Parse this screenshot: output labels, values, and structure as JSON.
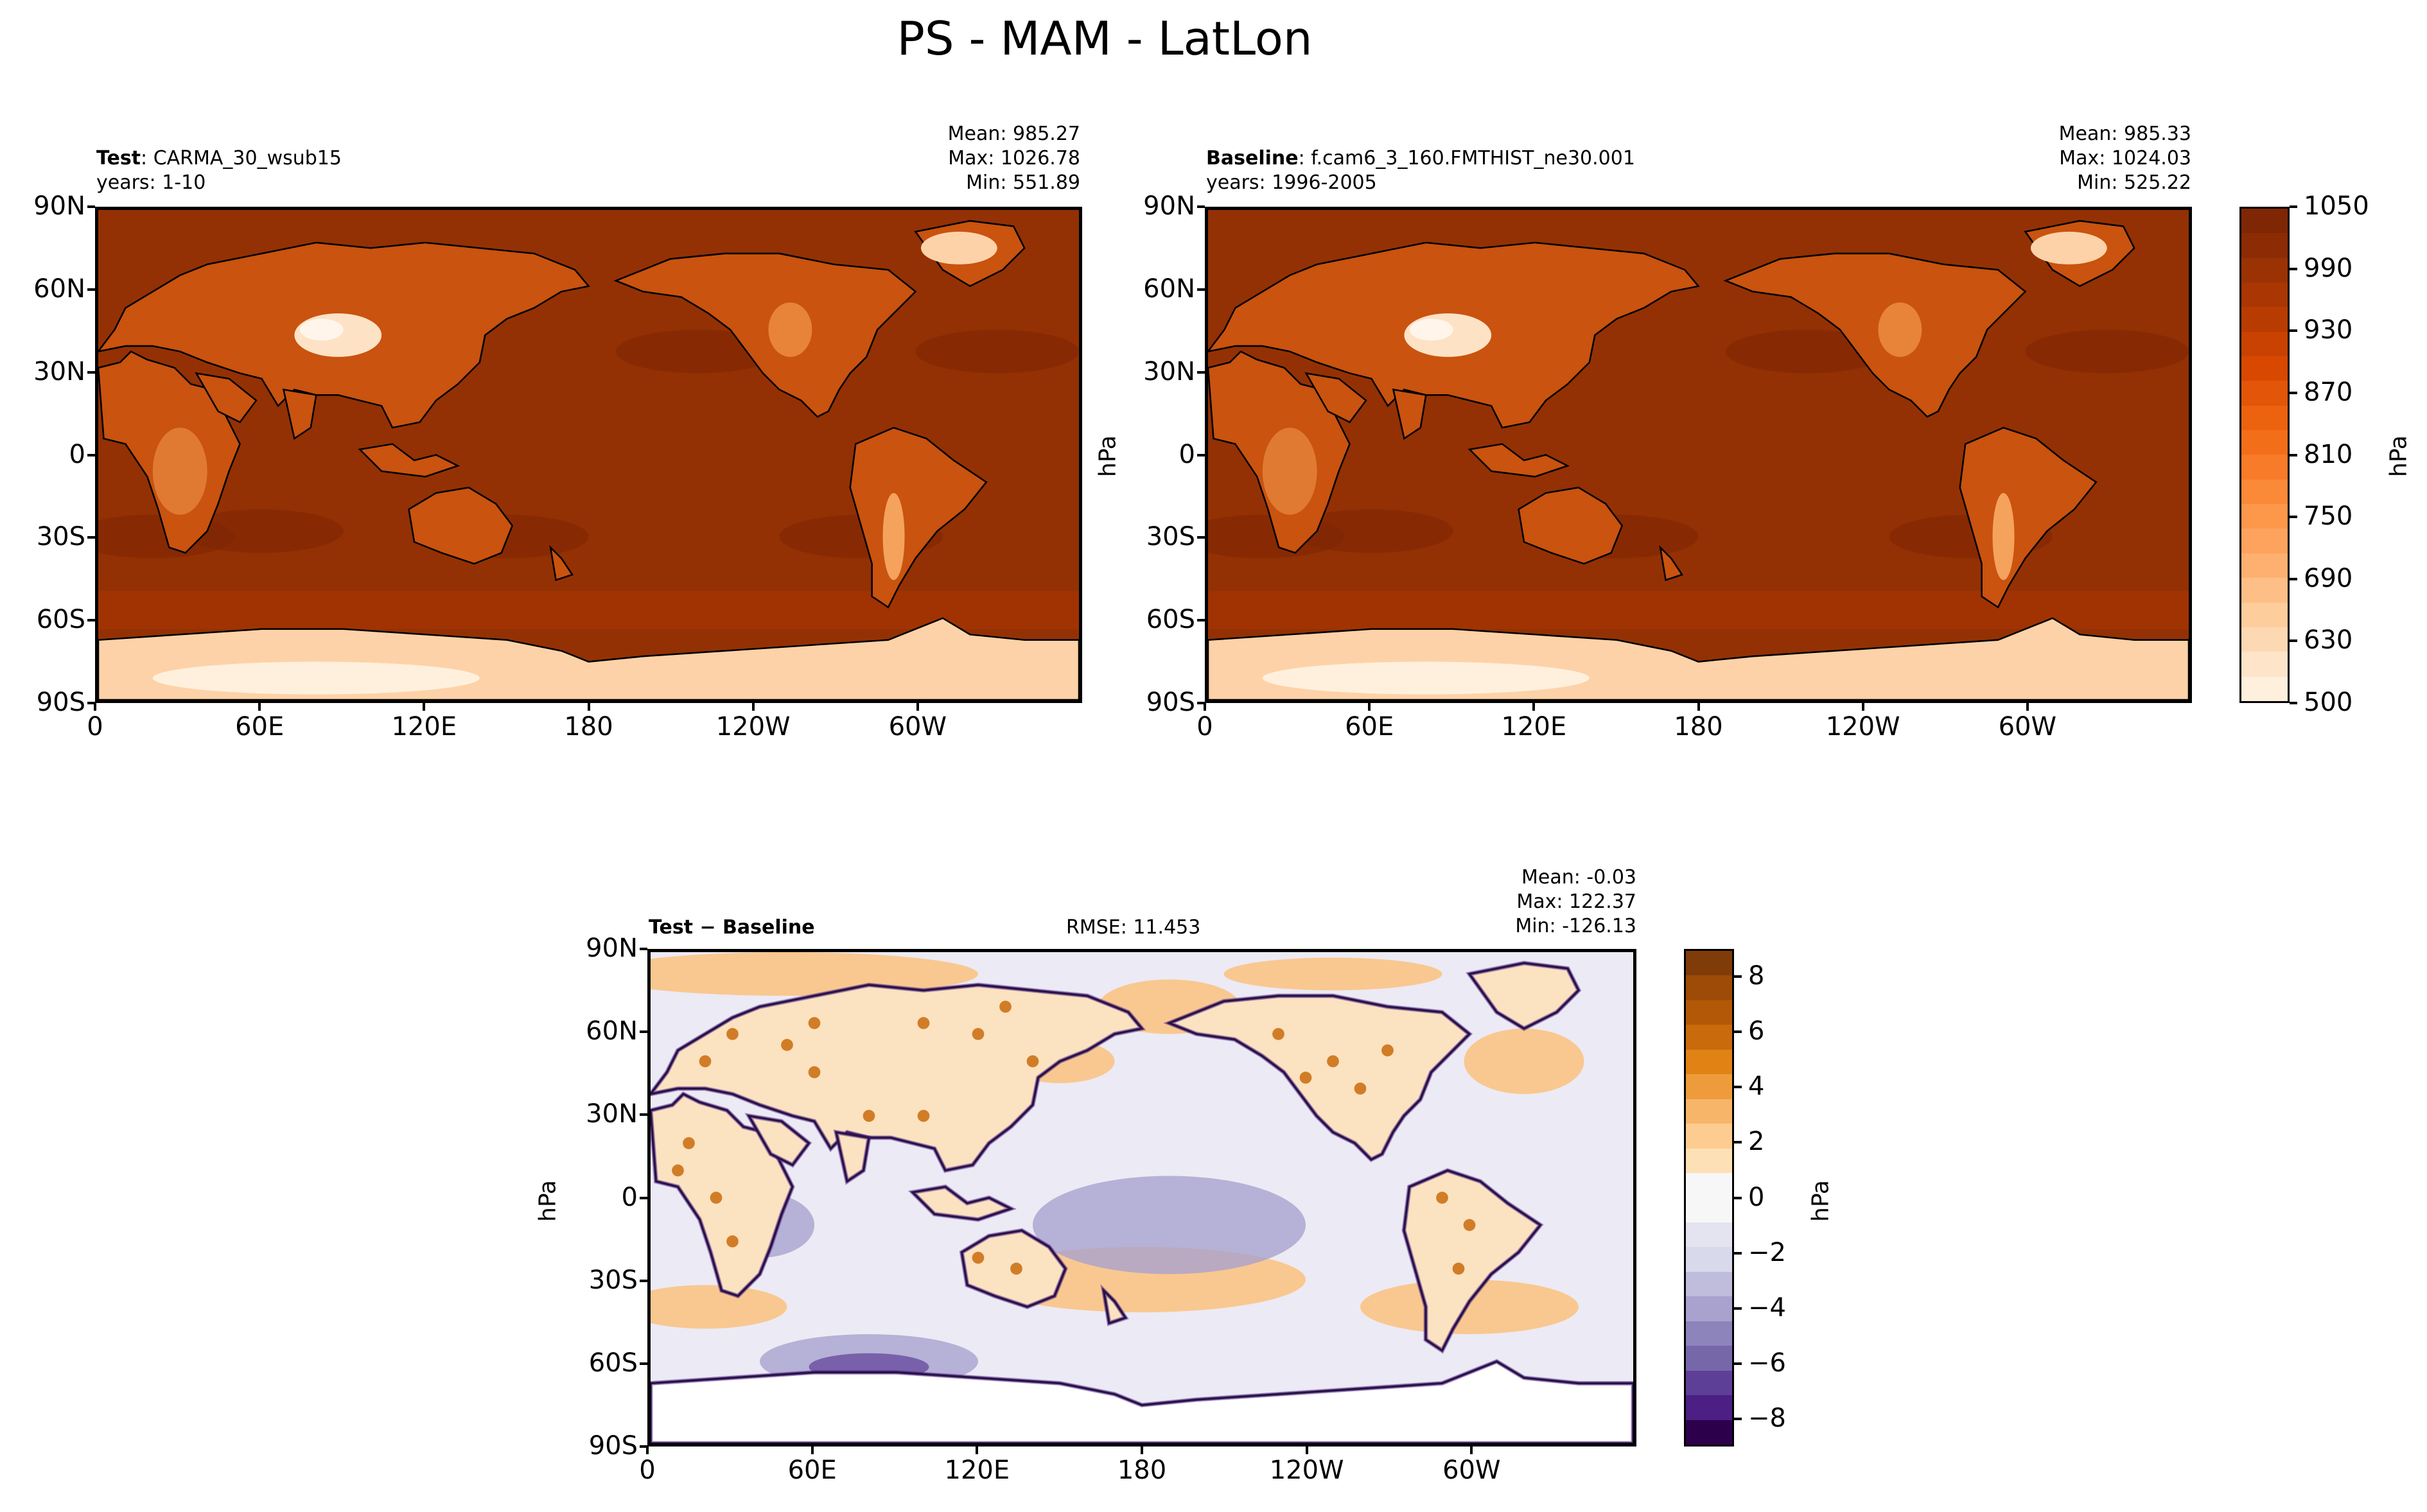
{
  "title": "PS - MAM - LatLon",
  "panels": [
    {
      "id": "test",
      "label_bold": "Test",
      "label_sep": ":",
      "case": "CARMA_30_wsub15",
      "years": "years: 1-10",
      "stats": [
        "Mean: 985.27",
        "Max: 1026.78",
        "Min: 551.89"
      ],
      "ylabel": "hPa"
    },
    {
      "id": "baseline",
      "label_bold": "Baseline",
      "label_sep": ":",
      "case": "f.cam6_3_160.FMTHIST_ne30.001",
      "years": "years: 1996-2005",
      "stats": [
        "Mean: 985.33",
        "Max: 1024.03",
        "Min: 525.22"
      ]
    },
    {
      "id": "diff",
      "label_bold": "Test − Baseline",
      "rmse": "RMSE: 11.453",
      "stats": [
        "Mean: -0.03",
        "Max: 122.37",
        "Min: -126.13"
      ],
      "ylabel": "hPa"
    }
  ],
  "chart_data": [
    {
      "type": "heatmap",
      "name": "Test",
      "x_ticks": [
        "0",
        "60E",
        "120E",
        "180",
        "120W",
        "60W"
      ],
      "y_ticks": [
        "90N",
        "60N",
        "30N",
        "0",
        "30S",
        "60S",
        "90S"
      ],
      "x_range": [
        0,
        360
      ],
      "y_range": [
        -90,
        90
      ],
      "colormap": "Oranges",
      "clim": [
        500,
        1050
      ]
    },
    {
      "type": "heatmap",
      "name": "Baseline",
      "x_ticks": [
        "0",
        "60E",
        "120E",
        "180",
        "120W",
        "60W"
      ],
      "y_ticks": [
        "90N",
        "60N",
        "30N",
        "0",
        "30S",
        "60S",
        "90S"
      ],
      "x_range": [
        0,
        360
      ],
      "y_range": [
        -90,
        90
      ],
      "colormap": "Oranges",
      "clim": [
        500,
        1050
      ]
    },
    {
      "type": "heatmap",
      "name": "Test − Baseline",
      "x_ticks": [
        "0",
        "60E",
        "120E",
        "180",
        "120W",
        "60W"
      ],
      "y_ticks": [
        "90N",
        "60N",
        "30N",
        "0",
        "30S",
        "60S",
        "90S"
      ],
      "x_range": [
        0,
        360
      ],
      "y_range": [
        -90,
        90
      ],
      "colormap": "PuOr_r",
      "clim": [
        -9,
        9
      ]
    }
  ],
  "colorbar_main": {
    "ticks": [
      "1050",
      "990",
      "930",
      "870",
      "810",
      "750",
      "690",
      "630",
      "500"
    ],
    "label": "hPa",
    "colors": [
      "#7f2704",
      "#8d2c04",
      "#9b3203",
      "#a93603",
      "#b83c02",
      "#c94202",
      "#d94801",
      "#e35508",
      "#ec620f",
      "#f36e19",
      "#f77b28",
      "#fa8938",
      "#fd974a",
      "#fda35d",
      "#fdb070",
      "#fdbf86",
      "#fdcd9c",
      "#fdd9b3",
      "#fee4c8",
      "#fef0dd"
    ]
  },
  "colorbar_diff": {
    "ticks": [
      "8",
      "6",
      "4",
      "2",
      "0",
      "−2",
      "−4",
      "−6",
      "−8"
    ],
    "label": "hPa",
    "colors": [
      "#7f3b08",
      "#9d4b07",
      "#b35806",
      "#c96b0c",
      "#e08214",
      "#ee9b3c",
      "#f7b56a",
      "#fdcc90",
      "#fee0b6",
      "#f7f7f7",
      "#f7f7f7",
      "#e3e4f0",
      "#d8daeb",
      "#bfbcdc",
      "#a9a2ce",
      "#8d84bc",
      "#7667a9",
      "#5e3f97",
      "#4b1f83",
      "#2d004b"
    ]
  }
}
